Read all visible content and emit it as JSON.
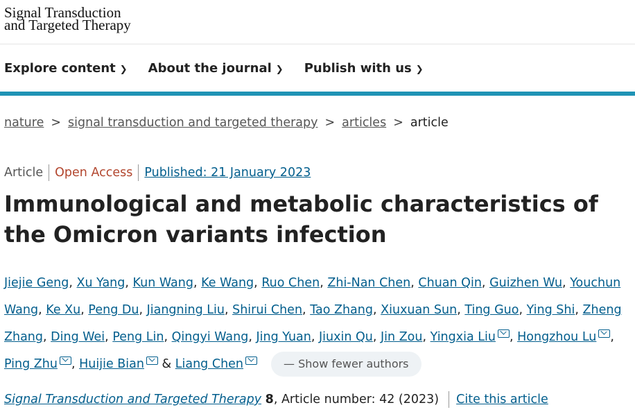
{
  "header": {
    "logo_line1": "Signal Transduction",
    "logo_line2": "and Targeted Therapy"
  },
  "nav": [
    {
      "label": "Explore content"
    },
    {
      "label": "About the journal"
    },
    {
      "label": "Publish with us"
    }
  ],
  "breadcrumb": [
    {
      "label": "nature"
    },
    {
      "label": "signal transduction and targeted therapy"
    },
    {
      "label": "articles"
    },
    {
      "label": "article"
    }
  ],
  "meta": {
    "type": "Article",
    "access": "Open Access",
    "published": "Published: 21 January 2023"
  },
  "title": "Immunological and metabolic characteristics of the Omicron variants infection",
  "authors": [
    {
      "name": "Jiejie Geng"
    },
    {
      "name": "Xu Yang"
    },
    {
      "name": "Kun Wang"
    },
    {
      "name": "Ke Wang"
    },
    {
      "name": "Ruo Chen"
    },
    {
      "name": "Zhi-Nan Chen"
    },
    {
      "name": "Chuan Qin"
    },
    {
      "name": "Guizhen Wu"
    },
    {
      "name": "Youchun Wang"
    },
    {
      "name": "Ke Xu"
    },
    {
      "name": "Peng Du"
    },
    {
      "name": "Jiangning Liu"
    },
    {
      "name": "Shirui Chen"
    },
    {
      "name": "Tao Zhang"
    },
    {
      "name": "Xiuxuan Sun"
    },
    {
      "name": "Ting Guo"
    },
    {
      "name": "Ying Shi"
    },
    {
      "name": "Zheng Zhang"
    },
    {
      "name": "Ding Wei"
    },
    {
      "name": "Peng Lin"
    },
    {
      "name": "Qingyi Wang"
    },
    {
      "name": "Jing Yuan"
    },
    {
      "name": "Jiuxin Qu"
    },
    {
      "name": "Jin Zou"
    },
    {
      "name": "Yingxia Liu",
      "email": true
    },
    {
      "name": "Hongzhou Lu",
      "email": true
    },
    {
      "name": "Ping Zhu",
      "email": true
    },
    {
      "name": "Huijie Bian",
      "email": true
    },
    {
      "name": "Liang Chen",
      "email": true
    }
  ],
  "show_fewer": "Show fewer authors",
  "citation": {
    "journal": "Signal Transduction and Targeted Therapy",
    "volume": "8",
    "rest": ", Article number: 42 (2023)",
    "cite_link": "Cite this article"
  }
}
